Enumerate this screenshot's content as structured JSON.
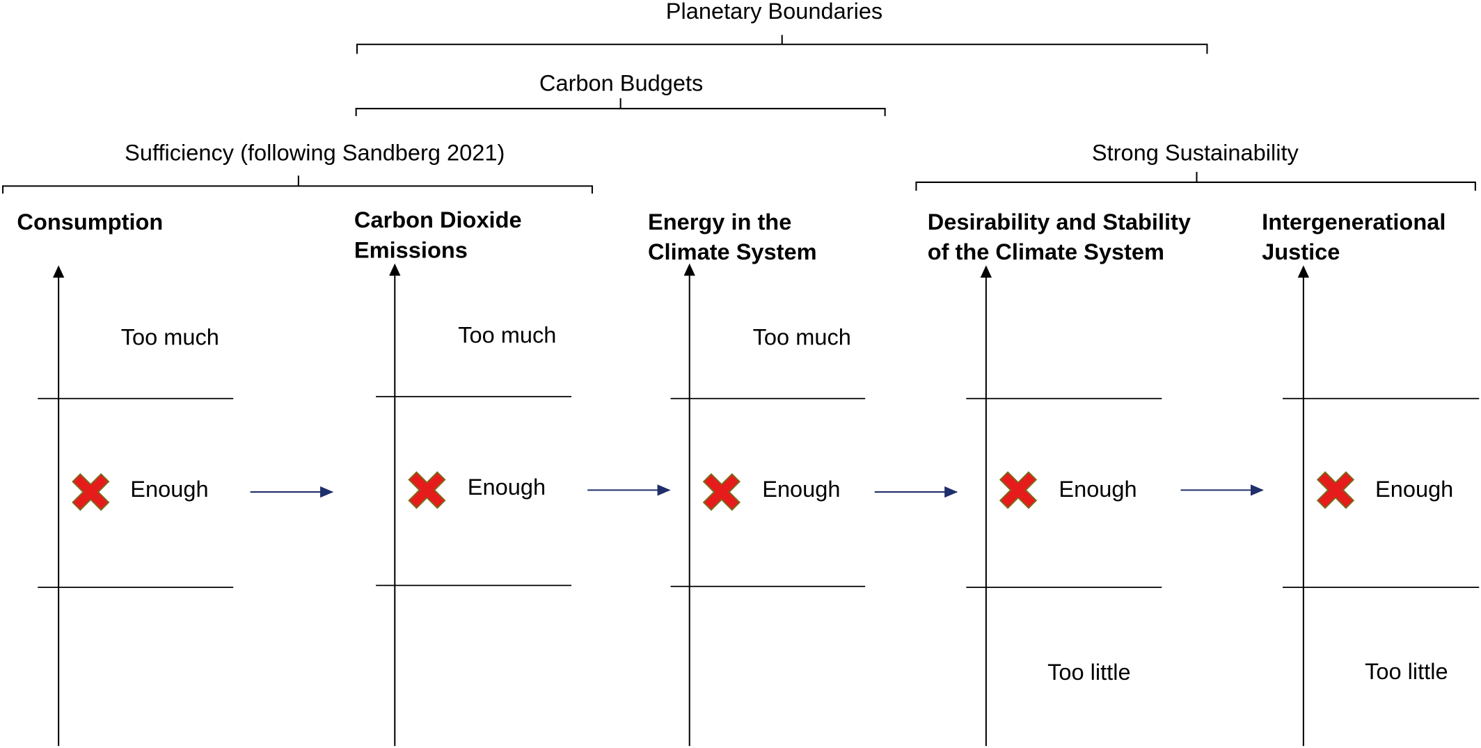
{
  "brackets": [
    {
      "label": "Planetary Boundaries"
    },
    {
      "label": "Carbon Budgets"
    },
    {
      "label": "Sufficiency (following Sandberg 2021)"
    },
    {
      "label": "Strong Sustainability"
    }
  ],
  "columns": [
    {
      "title_line1": "Consumption",
      "title_line2": "",
      "top_label": "Too much",
      "middle_label": "Enough",
      "bottom_label": ""
    },
    {
      "title_line1": "Carbon Dioxide",
      "title_line2": "Emissions",
      "top_label": "Too much",
      "middle_label": "Enough",
      "bottom_label": ""
    },
    {
      "title_line1": "Energy in the",
      "title_line2": "Climate System",
      "top_label": "Too much",
      "middle_label": "Enough",
      "bottom_label": ""
    },
    {
      "title_line1": "Desirability and Stability",
      "title_line2": "of the Climate System",
      "top_label": "",
      "middle_label": "Enough",
      "bottom_label": "Too little"
    },
    {
      "title_line1": "Intergenerational",
      "title_line2": "Justice",
      "top_label": "",
      "middle_label": "Enough",
      "bottom_label": "Too little"
    }
  ],
  "colors": {
    "line": "#000000",
    "flow_arrow": "#1f2f6b",
    "marker_fill": "#e61c1c",
    "marker_outline": "#7a6a1a"
  },
  "icons": {
    "marker": "red-x-marker-icon",
    "flow": "right-arrow-icon"
  }
}
